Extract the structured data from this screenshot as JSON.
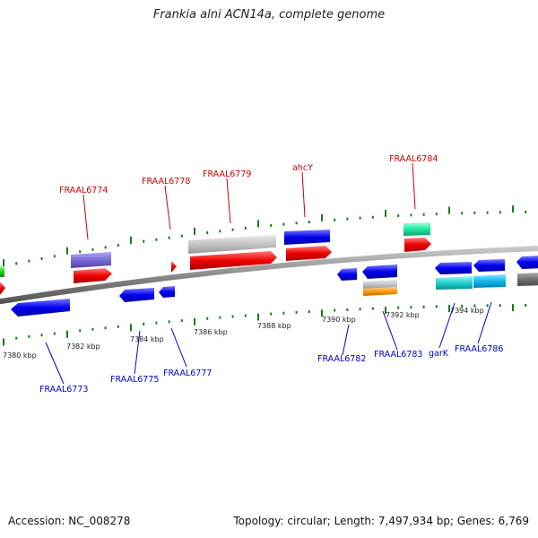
{
  "title": "Frankia alni ACN14a, complete genome",
  "footer": {
    "accession": "Accession: NC_008278",
    "summary": "Topology: circular; Length: 7,497,934 bp; Genes: 6,769"
  },
  "colors": {
    "forward_label": "#cc0000",
    "reverse_label": "#0000cc",
    "tick": "#1a7a1a",
    "backbone": "#808080"
  },
  "tick_labels": [
    "7380 kbp",
    "7382 kbp",
    "7384 kbp",
    "7386 kbp",
    "7388 kbp",
    "7390 kbp",
    "7392 kbp",
    "7394 kbp"
  ],
  "forward_labels": [
    "FRAAL6774",
    "FRAAL6778",
    "FRAAL6779",
    "ahcY",
    "FRAAL6784"
  ],
  "reverse_labels": [
    "FRAAL6773",
    "FRAAL6775",
    "FRAAL6777",
    "FRAAL6782",
    "FRAAL6783",
    "garK",
    "FRAAL6786"
  ]
}
